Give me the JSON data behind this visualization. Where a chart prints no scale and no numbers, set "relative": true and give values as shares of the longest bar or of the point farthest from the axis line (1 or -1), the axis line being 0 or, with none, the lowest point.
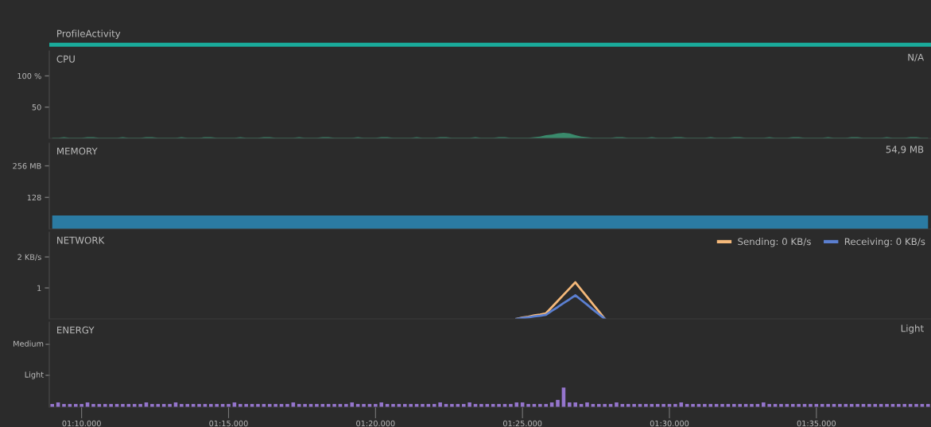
{
  "chart_data": [
    {
      "type": "other",
      "title": "ProfileActivity"
    },
    {
      "type": "area",
      "title": "CPU",
      "annotations": [
        "N/A"
      ],
      "ylim": [
        0,
        140
      ],
      "yticks": [
        {
          "value": 100,
          "label": "100 %"
        },
        50
      ],
      "tick_labels": "y",
      "categories": [
        null,
        null,
        null,
        null,
        null,
        null,
        null,
        null,
        null,
        null,
        null,
        null,
        null,
        null,
        null,
        null,
        null,
        null,
        null,
        null,
        null,
        null,
        null,
        null,
        null,
        null,
        null,
        null,
        null,
        null,
        null,
        null,
        null,
        null,
        null,
        null,
        null,
        null,
        null,
        null,
        null,
        null,
        null,
        null,
        null,
        null,
        null,
        null,
        null,
        null,
        null,
        null,
        null,
        null,
        null,
        null,
        null,
        null,
        null,
        null,
        null,
        null,
        null,
        null,
        null,
        null,
        null,
        null,
        null,
        null,
        null,
        null,
        null,
        null,
        null,
        null,
        null,
        null,
        null,
        null,
        null,
        null,
        null,
        null,
        null,
        null,
        null,
        null,
        null,
        null,
        null,
        null,
        null,
        null,
        null,
        null,
        null,
        null,
        null,
        null,
        null,
        null,
        null,
        null,
        null,
        null,
        null,
        null,
        null,
        null,
        null,
        null,
        null,
        null,
        null,
        null,
        null,
        null,
        null,
        null,
        null,
        null,
        null,
        null,
        null,
        null,
        null,
        null,
        null,
        null,
        null,
        null,
        null,
        null,
        null,
        null,
        null,
        null,
        null,
        null,
        null,
        null,
        null,
        null,
        null,
        null,
        null,
        null,
        null,
        null
      ],
      "series": [
        {
          "color": "#3a8a6c",
          "values": [
            1,
            1,
            2,
            1,
            1,
            1,
            2,
            2,
            1,
            1,
            1,
            1,
            2,
            1,
            1,
            1,
            2,
            2,
            1,
            1,
            1,
            1,
            2,
            1,
            1,
            1,
            2,
            2,
            1,
            1,
            1,
            1,
            2,
            1,
            1,
            1,
            2,
            2,
            1,
            1,
            1,
            1,
            2,
            1,
            1,
            1,
            2,
            2,
            1,
            1,
            1,
            1,
            2,
            1,
            1,
            1,
            2,
            2,
            1,
            1,
            1,
            1,
            2,
            1,
            1,
            1,
            2,
            2,
            1,
            1,
            1,
            1,
            2,
            1,
            1,
            1,
            2,
            2,
            1,
            1,
            1,
            1,
            2,
            3,
            5,
            6,
            8,
            9,
            8,
            5,
            3,
            2,
            1,
            1,
            1,
            1,
            2,
            2,
            1,
            1,
            1,
            1,
            2,
            1,
            1,
            1,
            2,
            2,
            1,
            1,
            1,
            1,
            2,
            1,
            1,
            1,
            2,
            2,
            1,
            1,
            1,
            1,
            2,
            1,
            1,
            1,
            2,
            2,
            1,
            1,
            1,
            1,
            2,
            1,
            1,
            1,
            2,
            2,
            1,
            1,
            1,
            1,
            2,
            1,
            1,
            1,
            2,
            2,
            1,
            1
          ]
        }
      ]
    },
    {
      "type": "area",
      "title": "MEMORY",
      "annotations": [
        "54,9 MB"
      ],
      "ylim": [
        0,
        348
      ],
      "yticks": [
        {
          "value": 256,
          "label": "256 MB"
        },
        128
      ],
      "tick_labels": "y",
      "categories": [
        null,
        null,
        null,
        null,
        null,
        null,
        null,
        null,
        null,
        null,
        null,
        null,
        null,
        null,
        null,
        null,
        null,
        null,
        null,
        null,
        null,
        null,
        null,
        null,
        null,
        null,
        null,
        null,
        null,
        null,
        null,
        null,
        null,
        null,
        null,
        null,
        null,
        null,
        null,
        null,
        null,
        null,
        null,
        null,
        null,
        null,
        null,
        null,
        null,
        null,
        null,
        null,
        null,
        null,
        null,
        null,
        null,
        null,
        null,
        null,
        null,
        null,
        null,
        null,
        null,
        null,
        null,
        null,
        null,
        null,
        null,
        null,
        null,
        null,
        null,
        null,
        null,
        null,
        null,
        null,
        null,
        null,
        null,
        null,
        null,
        null,
        null,
        null,
        null,
        null,
        null,
        null,
        null,
        null,
        null,
        null,
        null,
        null,
        null,
        null,
        null,
        null,
        null,
        null,
        null,
        null,
        null,
        null,
        null,
        null,
        null,
        null,
        null,
        null,
        null,
        null,
        null,
        null,
        null,
        null,
        null,
        null,
        null,
        null,
        null,
        null,
        null,
        null,
        null,
        null,
        null,
        null,
        null,
        null,
        null,
        null,
        null,
        null,
        null,
        null,
        null,
        null,
        null,
        null,
        null,
        null,
        null,
        null,
        null,
        null
      ],
      "series": [
        {
          "color": "#2b7ba3",
          "values": [
            55,
            55,
            55,
            55,
            55,
            55,
            55,
            55,
            55,
            55,
            55,
            55,
            55,
            55,
            55,
            55,
            55,
            55,
            55,
            55,
            55,
            55,
            55,
            55,
            55,
            55,
            55,
            55,
            55,
            55,
            55,
            55,
            55,
            55,
            55,
            55,
            55,
            55,
            55,
            55,
            55,
            55,
            55,
            55,
            55,
            55,
            55,
            55,
            55,
            55,
            55,
            55,
            55,
            55,
            55,
            55,
            55,
            55,
            55,
            55,
            55,
            55,
            55,
            55,
            55,
            55,
            55,
            55,
            55,
            55,
            55,
            55,
            55,
            55,
            55,
            55,
            55,
            55,
            55,
            55,
            55,
            55,
            55,
            55,
            55,
            55,
            55,
            55,
            55,
            55,
            55,
            55,
            55,
            55,
            55,
            55,
            55,
            55,
            55,
            55,
            55,
            55,
            55,
            55,
            55,
            55,
            55,
            55,
            55,
            55,
            55,
            55,
            55,
            55,
            55,
            55,
            55,
            55,
            55,
            55,
            55,
            55,
            55,
            55,
            55,
            55,
            55,
            55,
            55,
            55,
            55,
            55,
            55,
            55,
            55,
            55,
            55,
            55,
            55,
            55,
            55,
            55,
            55,
            55,
            55,
            55,
            55,
            55,
            55,
            55
          ]
        }
      ]
    },
    {
      "type": "line",
      "title": "NETWORK",
      "ylim": [
        0,
        2.8
      ],
      "yticks": [
        {
          "value": 2,
          "label": "2 KB/s"
        },
        1
      ],
      "tick_labels": "y",
      "legend": "top right",
      "categories": [
        null,
        null,
        null,
        null,
        null,
        null,
        null,
        null,
        null,
        null,
        null,
        null,
        null,
        null,
        null,
        null,
        null,
        null,
        null,
        null,
        null,
        null,
        null,
        null,
        null,
        null,
        null,
        null,
        null,
        null,
        null,
        null,
        null,
        null,
        null,
        null,
        null,
        null,
        null,
        null,
        null,
        null,
        null,
        null,
        null,
        null,
        null,
        null,
        null,
        null,
        null,
        null,
        null,
        null,
        null,
        null,
        null,
        null,
        null,
        null,
        null,
        null,
        null,
        null,
        null,
        null,
        null,
        null,
        null,
        null,
        null,
        null,
        null,
        null,
        null,
        null,
        null,
        null,
        null,
        null,
        null,
        null,
        null,
        null,
        null,
        null,
        null,
        null,
        null,
        null,
        null,
        null,
        null,
        null,
        null,
        null,
        null,
        null,
        null,
        null,
        null,
        null,
        null,
        null,
        null,
        null,
        null,
        null,
        null,
        null,
        null,
        null,
        null,
        null,
        null,
        null,
        null,
        null,
        null,
        null,
        null,
        null,
        null,
        null,
        null,
        null,
        null,
        null,
        null,
        null,
        null,
        null,
        null,
        null,
        null,
        null,
        null,
        null,
        null,
        null,
        null,
        null,
        null,
        null,
        null,
        null,
        null,
        null,
        null,
        null
      ],
      "series": [
        {
          "name": "Sending: 0 KB/s",
          "color": "#f5b97a",
          "values": [
            null,
            null,
            null,
            null,
            null,
            null,
            null,
            null,
            null,
            null,
            null,
            null,
            null,
            null,
            null,
            null,
            null,
            null,
            null,
            null,
            null,
            null,
            null,
            null,
            null,
            null,
            null,
            null,
            null,
            null,
            null,
            null,
            null,
            null,
            null,
            null,
            null,
            null,
            null,
            null,
            null,
            null,
            null,
            null,
            null,
            null,
            null,
            null,
            null,
            null,
            null,
            null,
            null,
            null,
            null,
            null,
            null,
            null,
            null,
            null,
            null,
            null,
            null,
            null,
            null,
            null,
            null,
            null,
            null,
            null,
            null,
            null,
            null,
            null,
            null,
            null,
            null,
            null,
            null,
            0,
            0.04,
            0.07,
            0.11,
            0.14,
            0.18,
            0.38,
            0.58,
            0.78,
            0.98,
            1.18,
            0.94,
            0.71,
            0.47,
            0.24,
            0,
            null,
            null,
            null,
            null,
            null,
            null,
            null,
            null,
            null,
            null,
            null,
            null,
            null,
            null,
            null,
            null,
            null,
            null,
            null,
            null,
            null,
            null,
            null,
            null,
            null,
            null,
            null,
            null,
            null,
            null,
            null,
            null,
            null,
            null,
            null,
            null,
            null,
            null,
            null,
            null,
            null,
            null,
            null,
            null,
            null,
            null,
            null,
            null,
            null,
            null,
            null,
            null,
            null,
            null,
            null
          ]
        },
        {
          "name": "Receiving: 0 KB/s",
          "color": "#5b7fd0",
          "values": [
            null,
            null,
            null,
            null,
            null,
            null,
            null,
            null,
            null,
            null,
            null,
            null,
            null,
            null,
            null,
            null,
            null,
            null,
            null,
            null,
            null,
            null,
            null,
            null,
            null,
            null,
            null,
            null,
            null,
            null,
            null,
            null,
            null,
            null,
            null,
            null,
            null,
            null,
            null,
            null,
            null,
            null,
            null,
            null,
            null,
            null,
            null,
            null,
            null,
            null,
            null,
            null,
            null,
            null,
            null,
            null,
            null,
            null,
            null,
            null,
            null,
            null,
            null,
            null,
            null,
            null,
            null,
            null,
            null,
            null,
            null,
            null,
            null,
            null,
            null,
            null,
            null,
            null,
            null,
            0,
            0.03,
            0.05,
            0.08,
            0.1,
            0.13,
            0.26,
            0.38,
            0.51,
            0.63,
            0.76,
            0.61,
            0.46,
            0.3,
            0.15,
            0,
            null,
            null,
            null,
            null,
            null,
            null,
            null,
            null,
            null,
            null,
            null,
            null,
            null,
            null,
            null,
            null,
            null,
            null,
            null,
            null,
            null,
            null,
            null,
            null,
            null,
            null,
            null,
            null,
            null,
            null,
            null,
            null,
            null,
            null,
            null,
            null,
            null,
            null,
            null,
            null,
            null,
            null,
            null,
            null,
            null,
            null,
            null,
            null,
            null,
            null,
            null,
            null,
            null,
            null,
            null
          ]
        }
      ]
    },
    {
      "type": "bar",
      "title": "ENERGY",
      "annotations": [
        "Light",
        "Medium",
        "Light"
      ],
      "relative": true,
      "categories": [
        null,
        null,
        null,
        null,
        null,
        "01:10.000",
        null,
        null,
        null,
        null,
        null,
        null,
        null,
        null,
        null,
        null,
        null,
        null,
        null,
        null,
        null,
        null,
        null,
        null,
        null,
        null,
        null,
        null,
        null,
        null,
        "01:15.000",
        null,
        null,
        null,
        null,
        null,
        null,
        null,
        null,
        null,
        null,
        null,
        null,
        null,
        null,
        null,
        null,
        null,
        null,
        null,
        null,
        null,
        null,
        null,
        null,
        "01:20.000",
        null,
        null,
        null,
        null,
        null,
        null,
        null,
        null,
        null,
        null,
        null,
        null,
        null,
        null,
        null,
        null,
        null,
        null,
        null,
        null,
        null,
        null,
        null,
        null,
        "01:25.000",
        null,
        null,
        null,
        null,
        null,
        null,
        null,
        null,
        null,
        null,
        null,
        null,
        null,
        null,
        null,
        null,
        null,
        null,
        null,
        null,
        null,
        null,
        null,
        null,
        "01:30.000",
        null,
        null,
        null,
        null,
        null,
        null,
        null,
        null,
        null,
        null,
        null,
        null,
        null,
        null,
        null,
        null,
        null,
        null,
        null,
        null,
        null,
        null,
        null,
        null,
        "01:35.000",
        null,
        null,
        null,
        null,
        null,
        null,
        null,
        null,
        null,
        null,
        null,
        null,
        null,
        null,
        null,
        null,
        null,
        null,
        null
      ],
      "series": [
        {
          "color": "#9575cd",
          "values": [
            0.16,
            0.24,
            0.16,
            0.16,
            0.16,
            0.16,
            0.24,
            0.16,
            0.16,
            0.16,
            0.16,
            0.16,
            0.16,
            0.16,
            0.16,
            0.16,
            0.24,
            0.16,
            0.16,
            0.16,
            0.16,
            0.24,
            0.16,
            0.16,
            0.16,
            0.16,
            0.16,
            0.16,
            0.16,
            0.16,
            0.16,
            0.24,
            0.16,
            0.16,
            0.16,
            0.16,
            0.16,
            0.16,
            0.16,
            0.16,
            0.16,
            0.24,
            0.16,
            0.16,
            0.16,
            0.16,
            0.16,
            0.16,
            0.16,
            0.16,
            0.16,
            0.24,
            0.16,
            0.16,
            0.16,
            0.16,
            0.24,
            0.16,
            0.16,
            0.16,
            0.16,
            0.16,
            0.16,
            0.16,
            0.16,
            0.16,
            0.24,
            0.16,
            0.16,
            0.16,
            0.16,
            0.24,
            0.16,
            0.16,
            0.16,
            0.16,
            0.16,
            0.16,
            0.16,
            0.24,
            0.24,
            0.16,
            0.16,
            0.16,
            0.16,
            0.24,
            0.37,
            1,
            0.24,
            0.24,
            0.16,
            0.24,
            0.16,
            0.16,
            0.16,
            0.16,
            0.24,
            0.16,
            0.16,
            0.16,
            0.16,
            0.16,
            0.16,
            0.16,
            0.16,
            0.16,
            0.16,
            0.24,
            0.16,
            0.16,
            0.16,
            0.16,
            0.16,
            0.16,
            0.16,
            0.16,
            0.16,
            0.16,
            0.16,
            0.16,
            0.16,
            0.24,
            0.16,
            0.16,
            0.16,
            0.16,
            0.16,
            0.16,
            0.16,
            0.16,
            0.16,
            0.16,
            0.16,
            0.16,
            0.16,
            0.16,
            0.16,
            0.16,
            0.16,
            0.16,
            0.16,
            0.16,
            0.16,
            0.16,
            0.16,
            0.16,
            0.16,
            0.16,
            0.16,
            0.16
          ]
        }
      ]
    }
  ]
}
